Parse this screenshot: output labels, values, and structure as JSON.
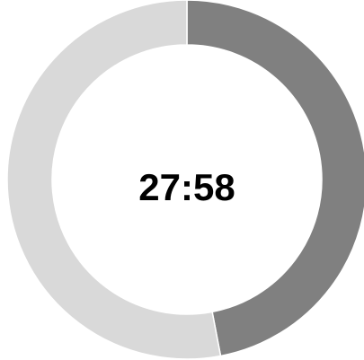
{
  "timer": {
    "label": "27:58",
    "segments": [
      {
        "color": "#808080",
        "value": 47
      },
      {
        "color": "#d9d9d9",
        "value": 53
      }
    ]
  }
}
